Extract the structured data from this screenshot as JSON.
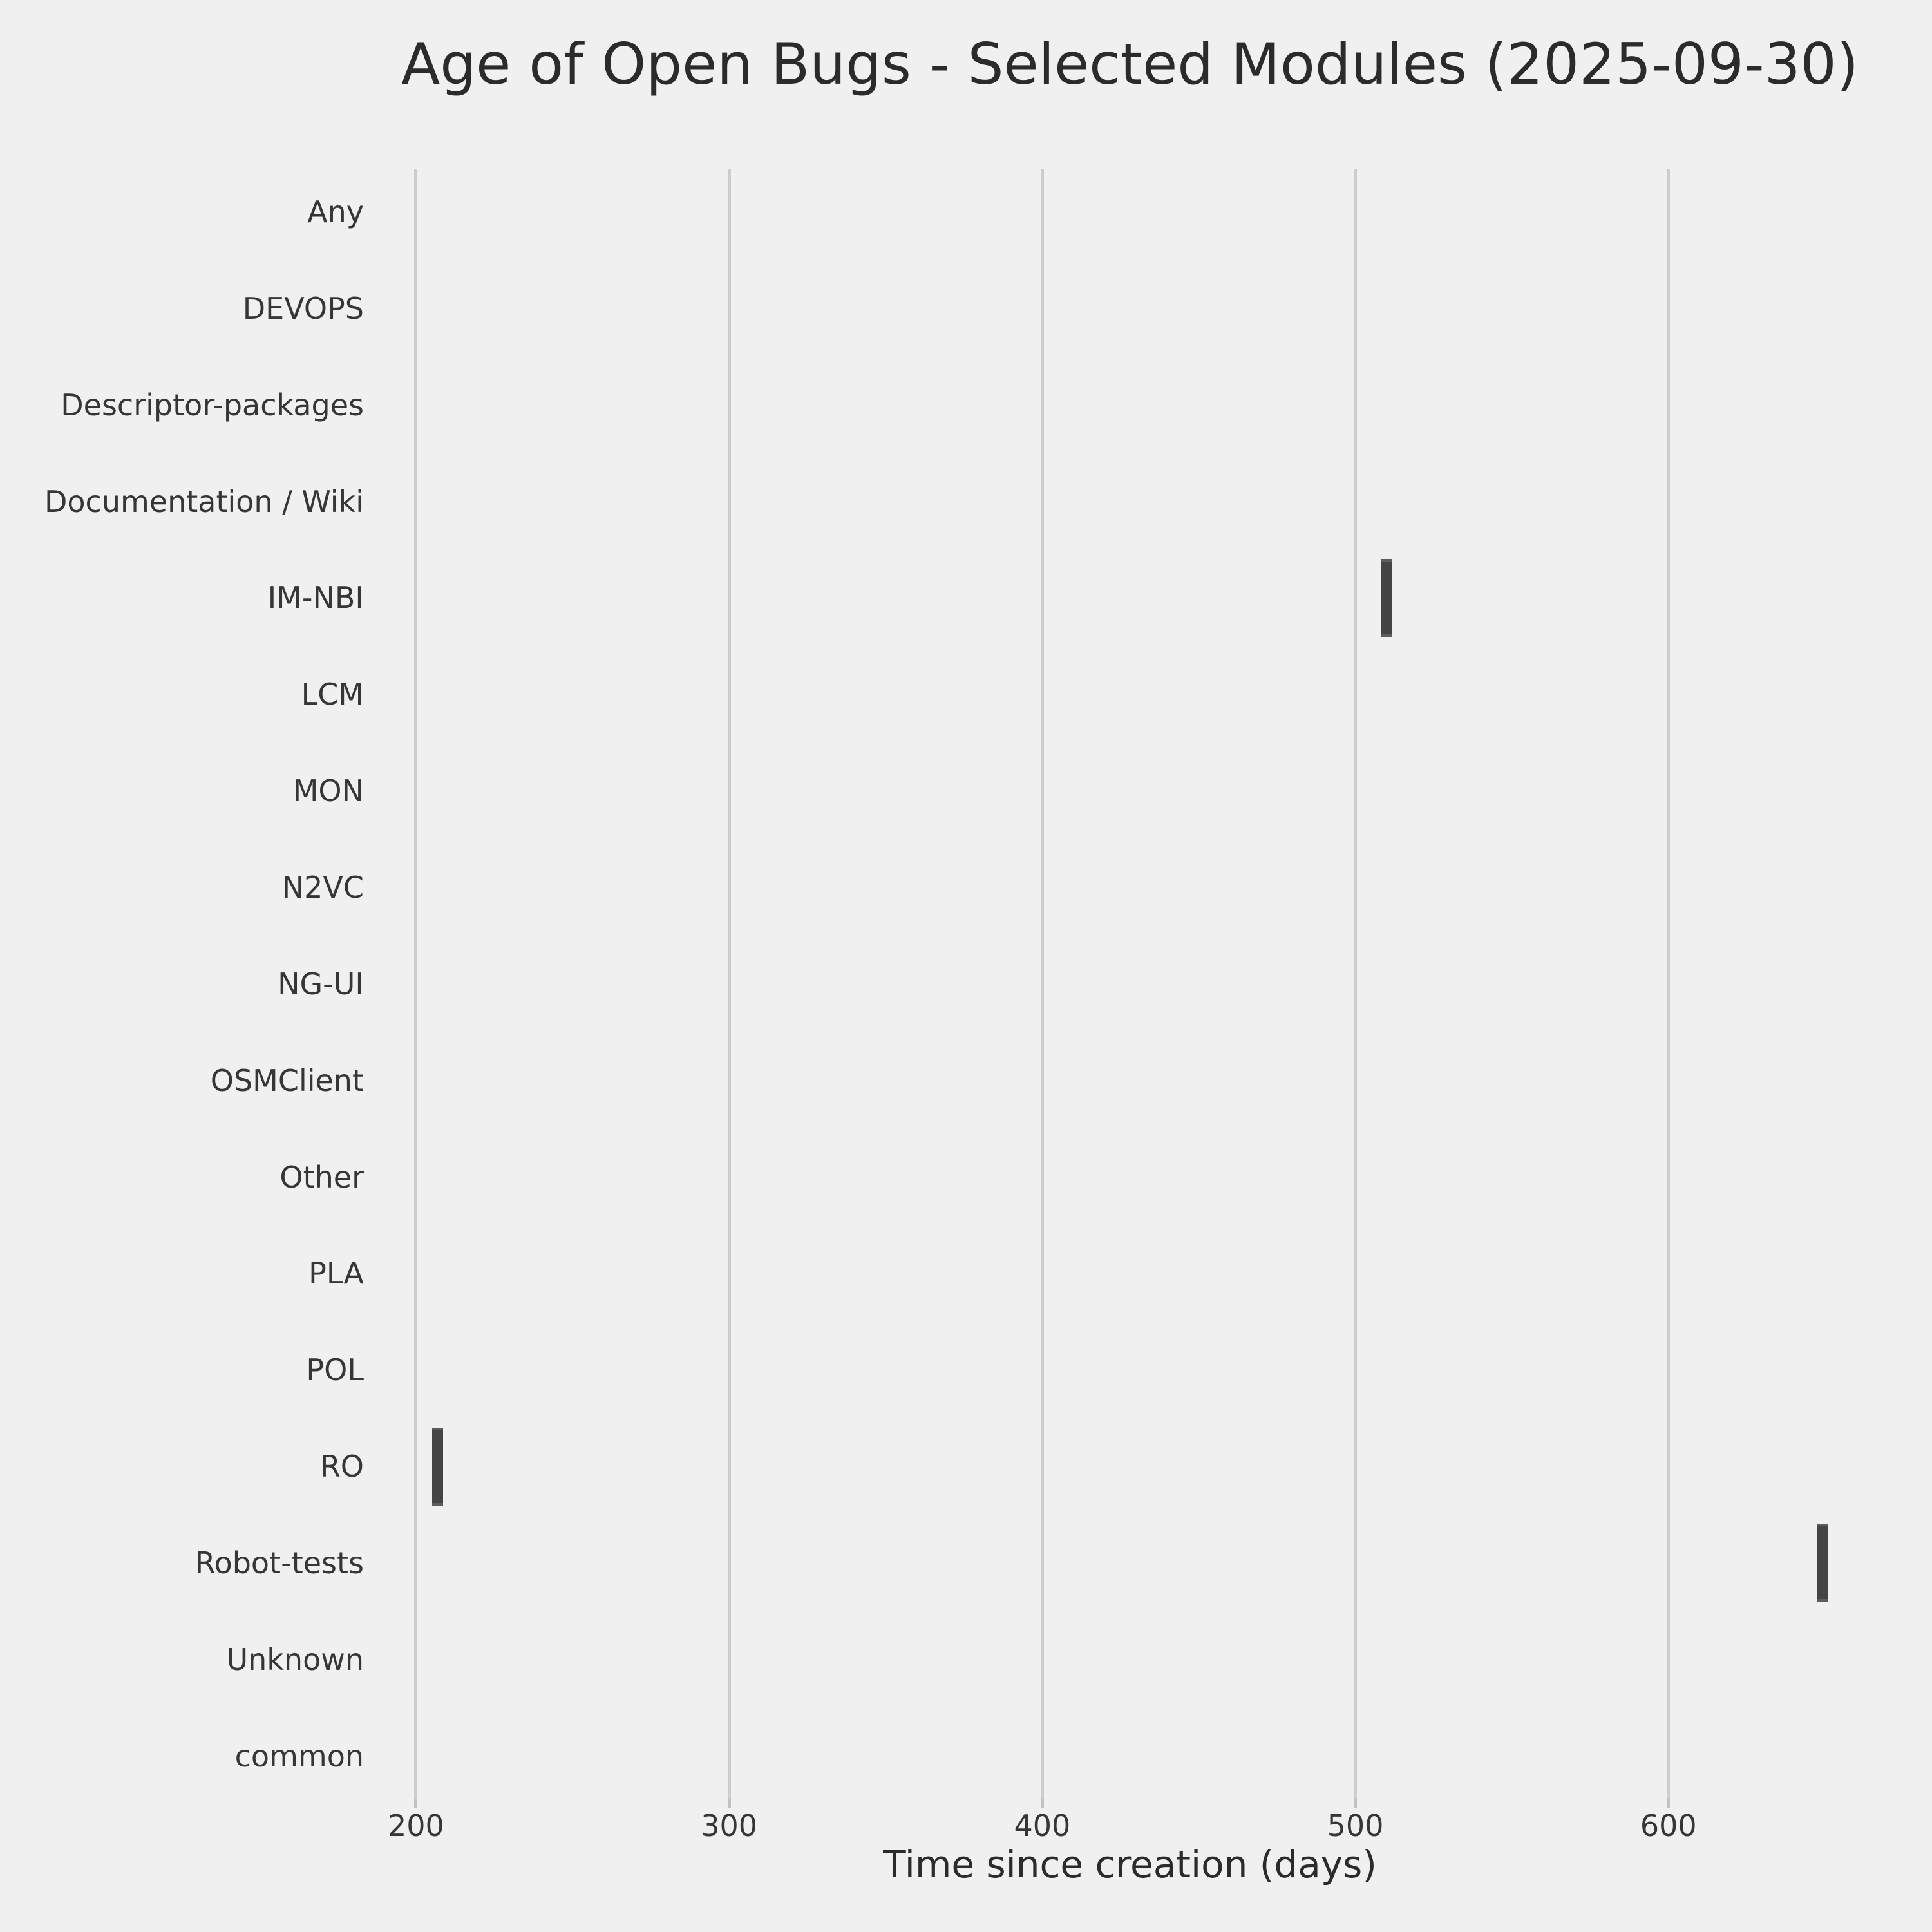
{
  "title": "Age of Open Bugs - Selected Modules (2025-09-30)",
  "colors": {
    "background": "#f0f0f0",
    "grid": "#cdcdcd",
    "tick_mark": "#c2c2c2",
    "box_fill": "#444444",
    "box_cap": "#5c5c5c",
    "title_text": "#2b2b2b",
    "label_text": "#363636"
  },
  "chart_data": {
    "type": "scatter",
    "subtype": "horizontal-boxplot-collapsed-to-single-values",
    "title": "Age of Open Bugs - Selected Modules (2025-09-30)",
    "xlabel": "Time since creation (days)",
    "ylabel": "",
    "categories": [
      "Any",
      "DEVOPS",
      "Descriptor-packages",
      "Documentation / Wiki",
      "IM-NBI",
      "LCM",
      "MON",
      "N2VC",
      "NG-UI",
      "OSMClient",
      "Other",
      "PLA",
      "POL",
      "RO",
      "Robot-tests",
      "Unknown",
      "common"
    ],
    "points": [
      {
        "category": "IM-NBI",
        "value_days": 510
      },
      {
        "category": "RO",
        "value_days": 207
      },
      {
        "category": "Robot-tests",
        "value_days": 649
      }
    ],
    "x_ticks": [
      200,
      300,
      400,
      500,
      600
    ],
    "xlim": [
      185,
      671
    ],
    "grid": "vertical-gridlines-only",
    "legend": "none"
  }
}
